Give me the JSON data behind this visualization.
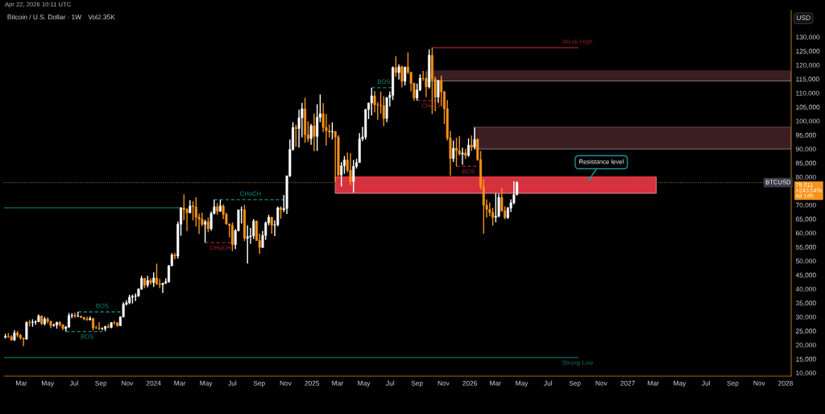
{
  "chart_data": {
    "type": "candlestick",
    "title": "Bitcoin / U.S. Dollar · 1W",
    "subtitle": "Vol2.35K",
    "ylabel": "USD",
    "x": [
      "2023-01-23",
      "2023-01-30",
      "2023-02-06",
      "2023-02-13",
      "2023-02-20",
      "2023-02-27",
      "2023-03-06",
      "2023-03-13",
      "2023-03-20",
      "2023-03-27",
      "2023-04-03",
      "2023-04-10",
      "2023-04-17",
      "2023-04-24",
      "2023-05-01",
      "2023-05-08",
      "2023-05-15",
      "2023-05-22",
      "2023-05-29",
      "2023-06-05",
      "2023-06-12",
      "2023-06-19",
      "2023-06-26",
      "2023-07-03",
      "2023-07-10",
      "2023-07-17",
      "2023-07-24",
      "2023-07-31",
      "2023-08-07",
      "2023-08-14",
      "2023-08-21",
      "2023-08-28",
      "2023-09-04",
      "2023-09-11",
      "2023-09-18",
      "2023-09-25",
      "2023-10-02",
      "2023-10-09",
      "2023-10-16",
      "2023-10-23",
      "2023-10-30",
      "2023-11-06",
      "2023-11-13",
      "2023-11-20",
      "2023-11-27",
      "2023-12-04",
      "2023-12-11",
      "2023-12-18",
      "2023-12-25",
      "2024-01-01",
      "2024-01-08",
      "2024-01-15",
      "2024-01-22",
      "2024-01-29",
      "2024-02-05",
      "2024-02-12",
      "2024-02-19",
      "2024-02-26",
      "2024-03-04",
      "2024-03-11",
      "2024-03-18",
      "2024-03-25",
      "2024-04-01",
      "2024-04-08",
      "2024-04-15",
      "2024-04-22",
      "2024-04-29",
      "2024-05-06",
      "2024-05-13",
      "2024-05-20",
      "2024-05-27",
      "2024-06-03",
      "2024-06-10",
      "2024-06-17",
      "2024-06-24",
      "2024-07-01",
      "2024-07-08",
      "2024-07-15",
      "2024-07-22",
      "2024-07-29",
      "2024-08-05",
      "2024-08-12",
      "2024-08-19",
      "2024-08-26",
      "2024-09-02",
      "2024-09-09",
      "2024-09-16",
      "2024-09-23",
      "2024-09-30",
      "2024-10-07",
      "2024-10-14",
      "2024-10-21",
      "2024-10-28",
      "2024-11-04",
      "2024-11-11",
      "2024-11-18",
      "2024-11-25",
      "2024-12-02",
      "2024-12-09",
      "2024-12-16",
      "2024-12-23",
      "2024-12-30",
      "2025-01-06",
      "2025-01-13",
      "2025-01-20",
      "2025-01-27",
      "2025-02-03",
      "2025-02-10",
      "2025-02-17",
      "2025-02-24",
      "2025-03-03",
      "2025-03-10",
      "2025-03-17",
      "2025-03-24",
      "2025-03-31",
      "2025-04-07",
      "2025-04-14",
      "2025-04-21",
      "2025-04-28",
      "2025-05-05",
      "2025-05-12",
      "2025-05-19",
      "2025-05-26",
      "2025-06-02",
      "2025-06-09",
      "2025-06-16",
      "2025-06-23",
      "2025-06-30",
      "2025-07-07",
      "2025-07-14",
      "2025-07-21",
      "2025-07-28",
      "2025-08-04",
      "2025-08-11",
      "2025-08-18",
      "2025-08-25",
      "2025-09-01",
      "2025-09-08",
      "2025-09-15",
      "2025-09-22",
      "2025-09-29",
      "2025-10-06",
      "2025-10-13",
      "2025-10-20",
      "2025-10-27",
      "2025-11-03",
      "2025-11-10",
      "2025-11-17",
      "2025-11-24",
      "2025-12-01",
      "2025-12-08",
      "2025-12-15",
      "2025-12-22",
      "2025-12-29",
      "2026-01-05",
      "2026-01-12",
      "2026-01-19",
      "2026-01-26",
      "2026-02-02",
      "2026-02-09",
      "2026-02-16",
      "2026-02-23",
      "2026-03-02",
      "2026-03-09",
      "2026-03-16",
      "2026-03-23",
      "2026-03-30",
      "2026-04-06",
      "2026-04-13",
      "2026-04-20"
    ],
    "ohlc": [
      [
        22700,
        23950,
        22300,
        23030
      ],
      [
        23030,
        24250,
        22550,
        22930
      ],
      [
        22930,
        23430,
        21440,
        21790
      ],
      [
        21790,
        25250,
        21350,
        24300
      ],
      [
        24300,
        25020,
        22760,
        23500
      ],
      [
        23500,
        23880,
        21960,
        22400
      ],
      [
        22400,
        22600,
        19570,
        22100
      ],
      [
        22100,
        28400,
        21900,
        28000
      ],
      [
        28000,
        28900,
        26650,
        27980
      ],
      [
        27980,
        29180,
        26500,
        28170
      ],
      [
        28170,
        28780,
        27220,
        28330
      ],
      [
        28330,
        30950,
        28180,
        30320
      ],
      [
        30320,
        30480,
        27150,
        27590
      ],
      [
        27590,
        30040,
        26950,
        29250
      ],
      [
        29250,
        29850,
        27680,
        28440
      ],
      [
        28440,
        28640,
        26000,
        26920
      ],
      [
        26920,
        27650,
        26550,
        27100
      ],
      [
        27100,
        28270,
        25850,
        28080
      ],
      [
        28080,
        28450,
        26520,
        27250
      ],
      [
        27250,
        27350,
        25350,
        25900
      ],
      [
        25900,
        26800,
        24800,
        26340
      ],
      [
        26340,
        31400,
        26250,
        30480
      ],
      [
        30480,
        31280,
        29550,
        30600
      ],
      [
        30600,
        31500,
        29720,
        30280
      ],
      [
        30280,
        31810,
        29950,
        30290
      ],
      [
        30290,
        30350,
        29550,
        29860
      ],
      [
        29860,
        29990,
        28850,
        29270
      ],
      [
        29270,
        30050,
        28650,
        29040
      ],
      [
        29040,
        30240,
        28700,
        29420
      ],
      [
        29420,
        29690,
        25150,
        26090
      ],
      [
        26090,
        26800,
        25800,
        26010
      ],
      [
        26010,
        28150,
        25350,
        25820
      ],
      [
        25820,
        26250,
        25350,
        25830
      ],
      [
        25830,
        26880,
        24900,
        26530
      ],
      [
        26530,
        27480,
        26170,
        26250
      ],
      [
        26250,
        28050,
        26000,
        27990
      ],
      [
        27990,
        28580,
        27200,
        27950
      ],
      [
        27950,
        28000,
        26550,
        26870
      ],
      [
        26870,
        30250,
        26820,
        29980
      ],
      [
        29980,
        35280,
        29850,
        34530
      ],
      [
        34530,
        35950,
        34100,
        35050
      ],
      [
        35050,
        37950,
        34550,
        37070
      ],
      [
        37070,
        37980,
        34800,
        37370
      ],
      [
        37370,
        38450,
        35700,
        37460
      ],
      [
        37460,
        40250,
        37200,
        39970
      ],
      [
        39970,
        44700,
        39700,
        43790
      ],
      [
        43790,
        43830,
        40250,
        41380
      ],
      [
        41380,
        44700,
        40550,
        43020
      ],
      [
        43020,
        43800,
        41500,
        42280
      ],
      [
        42280,
        45900,
        40750,
        43920
      ],
      [
        43920,
        49050,
        41500,
        41740
      ],
      [
        41740,
        43580,
        40300,
        41570
      ],
      [
        41570,
        42250,
        38550,
        42040
      ],
      [
        42040,
        43850,
        41800,
        42580
      ],
      [
        42580,
        48550,
        42250,
        48300
      ],
      [
        48300,
        52800,
        48100,
        52130
      ],
      [
        52130,
        52950,
        50550,
        51730
      ],
      [
        51730,
        64000,
        50900,
        63150
      ],
      [
        63150,
        69200,
        59000,
        68950
      ],
      [
        68950,
        73800,
        64550,
        68370
      ],
      [
        68370,
        68950,
        60750,
        67230
      ],
      [
        67230,
        71750,
        66950,
        69650
      ],
      [
        69650,
        71300,
        64500,
        69350
      ],
      [
        69350,
        72800,
        62300,
        65650
      ],
      [
        65650,
        66900,
        59650,
        64950
      ],
      [
        64950,
        67250,
        62450,
        63100
      ],
      [
        63100,
        64750,
        56550,
        64010
      ],
      [
        64010,
        65500,
        60250,
        61520
      ],
      [
        61520,
        67700,
        60800,
        66950
      ],
      [
        66950,
        71950,
        66650,
        69350
      ],
      [
        69350,
        70600,
        66500,
        67750
      ],
      [
        67750,
        71950,
        67600,
        69650
      ],
      [
        69650,
        70200,
        64950,
        66650
      ],
      [
        66650,
        67250,
        63000,
        63220
      ],
      [
        63220,
        63350,
        58450,
        62700
      ],
      [
        62700,
        63800,
        53550,
        55850
      ],
      [
        55850,
        61400,
        54250,
        60800
      ],
      [
        60800,
        68400,
        60600,
        68200
      ],
      [
        68200,
        69400,
        63400,
        68250
      ],
      [
        68250,
        70000,
        57100,
        58100
      ],
      [
        58100,
        62700,
        49050,
        58700
      ],
      [
        58700,
        61800,
        56100,
        58950
      ],
      [
        58950,
        65000,
        57850,
        64200
      ],
      [
        64200,
        64500,
        57200,
        57300
      ],
      [
        57300,
        59800,
        52550,
        54850
      ],
      [
        54850,
        60700,
        54600,
        59150
      ],
      [
        59150,
        64100,
        57550,
        63600
      ],
      [
        63600,
        66500,
        62700,
        65600
      ],
      [
        65600,
        65700,
        59800,
        62800
      ],
      [
        62800,
        64500,
        58900,
        62950
      ],
      [
        62950,
        69400,
        62400,
        69000
      ],
      [
        69000,
        69500,
        65050,
        68300
      ],
      [
        68300,
        73600,
        67500,
        68750
      ],
      [
        68750,
        80500,
        66800,
        80400
      ],
      [
        80400,
        93400,
        80000,
        89850
      ],
      [
        89850,
        99600,
        89400,
        97700
      ],
      [
        97700,
        98700,
        90800,
        97300
      ],
      [
        97300,
        104000,
        90500,
        101150
      ],
      [
        101150,
        106500,
        94200,
        104400
      ],
      [
        104400,
        108300,
        92200,
        95100
      ],
      [
        95100,
        99900,
        92500,
        93700
      ],
      [
        93700,
        99000,
        91500,
        98300
      ],
      [
        98300,
        102700,
        89200,
        94500
      ],
      [
        94500,
        106000,
        89300,
        101300
      ],
      [
        101300,
        109500,
        99600,
        102600
      ],
      [
        102600,
        106400,
        96000,
        97700
      ],
      [
        97700,
        102500,
        91200,
        96500
      ],
      [
        96500,
        98800,
        94100,
        96100
      ],
      [
        96100,
        99500,
        93400,
        96250
      ],
      [
        96250,
        96500,
        78200,
        94270
      ],
      [
        94270,
        95000,
        80100,
        80700
      ],
      [
        80700,
        85300,
        76600,
        84000
      ],
      [
        84000,
        87500,
        81150,
        86100
      ],
      [
        86100,
        88800,
        81600,
        82400
      ],
      [
        82400,
        88500,
        77150,
        78400
      ],
      [
        78400,
        86100,
        74450,
        83800
      ],
      [
        83800,
        86500,
        83000,
        85150
      ],
      [
        85150,
        95700,
        85100,
        93700
      ],
      [
        93700,
        97900,
        92800,
        94300
      ],
      [
        94300,
        104300,
        93400,
        104100
      ],
      [
        104100,
        106600,
        100700,
        106400
      ],
      [
        106400,
        111900,
        102000,
        109000
      ],
      [
        109000,
        110700,
        103100,
        105800
      ],
      [
        105800,
        106800,
        100400,
        105700
      ],
      [
        105700,
        110550,
        102700,
        105500
      ],
      [
        105500,
        108900,
        98200,
        100900
      ],
      [
        100900,
        108500,
        99600,
        108400
      ],
      [
        108400,
        110600,
        105200,
        109200
      ],
      [
        109200,
        119500,
        107500,
        119100
      ],
      [
        119100,
        123200,
        115800,
        117300
      ],
      [
        117300,
        120200,
        114800,
        119400
      ],
      [
        119400,
        119800,
        112000,
        114200
      ],
      [
        114200,
        119400,
        112700,
        119300
      ],
      [
        119300,
        124450,
        116800,
        117400
      ],
      [
        117400,
        117600,
        110600,
        113500
      ],
      [
        113500,
        113700,
        107300,
        108200
      ],
      [
        108200,
        113400,
        107300,
        111100
      ],
      [
        111100,
        116700,
        110700,
        115300
      ],
      [
        115300,
        117900,
        114400,
        115200
      ],
      [
        115200,
        115400,
        108600,
        112200
      ],
      [
        112200,
        125600,
        111600,
        123500
      ],
      [
        123500,
        126200,
        102500,
        114900
      ],
      [
        114900,
        115900,
        103500,
        108500
      ],
      [
        108500,
        114600,
        106500,
        114500
      ],
      [
        114500,
        116200,
        105400,
        110400
      ],
      [
        110400,
        110800,
        98900,
        104400
      ],
      [
        104400,
        107500,
        93000,
        93900
      ],
      [
        93900,
        96500,
        80400,
        86600
      ],
      [
        86600,
        93000,
        85300,
        90300
      ],
      [
        90300,
        94000,
        83800,
        89400
      ],
      [
        89400,
        94600,
        87600,
        88200
      ],
      [
        88200,
        90400,
        84400,
        88600
      ],
      [
        88600,
        90000,
        86500,
        87700
      ],
      [
        87700,
        93800,
        87200,
        91400
      ],
      [
        91400,
        94800,
        89300,
        90700
      ],
      [
        90700,
        97700,
        89900,
        93400
      ],
      [
        93400,
        93800,
        85800,
        86200
      ],
      [
        86200,
        89300,
        75500,
        76600
      ],
      [
        76600,
        79200,
        59800,
        69900
      ],
      [
        69900,
        72000,
        65500,
        68400
      ],
      [
        68400,
        70900,
        66000,
        67300
      ],
      [
        67300,
        69000,
        62600,
        65600
      ],
      [
        65600,
        74200,
        63800,
        66000
      ],
      [
        66000,
        74000,
        65600,
        72700
      ],
      [
        72700,
        76100,
        67600,
        67900
      ],
      [
        67900,
        69500,
        64900,
        65500
      ],
      [
        65500,
        69300,
        65000,
        68900
      ],
      [
        68900,
        72000,
        67500,
        70800
      ],
      [
        70800,
        78500,
        70200,
        73700
      ],
      [
        73700,
        78500,
        73400,
        78011
      ]
    ],
    "colors": [
      "#ffffff",
      "#f7931a",
      "#f7931a",
      "#ffffff",
      "#f7931a",
      "#f7931a",
      "#f7931a",
      "#ffffff",
      "#f7931a",
      "#ffffff",
      "#ffffff",
      "#ffffff",
      "#f7931a",
      "#ffffff",
      "#f7931a",
      "#f7931a",
      "#ffffff",
      "#ffffff",
      "#f7931a",
      "#f7931a",
      "#ffffff",
      "#ffffff",
      "#ffffff",
      "#f7931a",
      "#ffffff",
      "#f7931a",
      "#f7931a",
      "#f7931a",
      "#ffffff",
      "#f7931a",
      "#f7931a",
      "#f7931a",
      "#ffffff",
      "#ffffff",
      "#f7931a",
      "#ffffff",
      "#f7931a",
      "#f7931a",
      "#ffffff",
      "#ffffff",
      "#ffffff",
      "#ffffff",
      "#ffffff",
      "#ffffff",
      "#ffffff",
      "#ffffff",
      "#f7931a",
      "#ffffff",
      "#f7931a",
      "#ffffff",
      "#f7931a",
      "#f7931a",
      "#ffffff",
      "#ffffff",
      "#ffffff",
      "#ffffff",
      "#f7931a",
      "#ffffff",
      "#ffffff",
      "#f7931a",
      "#f7931a",
      "#ffffff",
      "#f7931a",
      "#f7931a",
      "#f7931a",
      "#f7931a",
      "#ffffff",
      "#f7931a",
      "#ffffff",
      "#ffffff",
      "#f7931a",
      "#ffffff",
      "#f7931a",
      "#f7931a",
      "#f7931a",
      "#f7931a",
      "#ffffff",
      "#ffffff",
      "#ffffff",
      "#f7931a",
      "#ffffff",
      "#ffffff",
      "#ffffff",
      "#f7931a",
      "#f7931a",
      "#ffffff",
      "#ffffff",
      "#ffffff",
      "#f7931a",
      "#ffffff",
      "#ffffff",
      "#f7931a",
      "#ffffff",
      "#ffffff",
      "#ffffff",
      "#ffffff",
      "#f7931a",
      "#ffffff",
      "#ffffff",
      "#f7931a",
      "#f7931a",
      "#ffffff",
      "#f7931a",
      "#ffffff",
      "#ffffff",
      "#f7931a",
      "#f7931a",
      "#f7931a",
      "#ffffff",
      "#f7931a",
      "#f7931a",
      "#ffffff",
      "#ffffff",
      "#f7931a",
      "#f7931a",
      "#ffffff",
      "#ffffff",
      "#ffffff",
      "#ffffff",
      "#ffffff",
      "#ffffff",
      "#ffffff",
      "#f7931a",
      "#f7931a",
      "#f7931a",
      "#f7931a",
      "#ffffff",
      "#ffffff",
      "#ffffff",
      "#f7931a",
      "#ffffff",
      "#f7931a",
      "#ffffff",
      "#f7931a",
      "#f7931a",
      "#f7931a",
      "#ffffff",
      "#ffffff",
      "#f7931a",
      "#f7931a",
      "#ffffff",
      "#f7931a",
      "#f7931a",
      "#ffffff",
      "#f7931a",
      "#f7931a",
      "#f7931a",
      "#f7931a",
      "#ffffff",
      "#f7931a",
      "#f7931a",
      "#ffffff",
      "#f7931a",
      "#ffffff",
      "#f7931a",
      "#ffffff",
      "#f7931a",
      "#f7931a",
      "#f7931a",
      "#f7931a",
      "#f7931a",
      "#f7931a",
      "#ffffff",
      "#ffffff",
      "#f7931a",
      "#f7931a",
      "#ffffff",
      "#ffffff",
      "#ffffff",
      "#ffffff"
    ],
    "series": [
      {
        "type": "line",
        "x": [
          "2025-02-24",
          "2027-03-08"
        ],
        "values": [
          80000,
          80000
        ],
        "lower": [
          74200,
          74200
        ],
        "upper": [
          80000,
          80000
        ],
        "color": "#d8303f"
      },
      {
        "type": "line",
        "x": [
          "2025-09-22",
          "2028-01-14"
        ],
        "values": [
          117800,
          117800
        ],
        "lower": [
          114300,
          114300
        ],
        "upper": [
          117800,
          117800
        ],
        "color": "#3b1e21"
      },
      {
        "type": "line",
        "x": [
          "2026-01-12",
          "2028-01-14"
        ],
        "values": [
          97800,
          97800
        ],
        "lower": [
          90000,
          90000
        ],
        "upper": [
          97800,
          97800
        ],
        "color": "#3b1e21"
      },
      {
        "type": "line",
        "x": [
          "2025-10-06",
          "2026-09-07"
        ],
        "values": [
          126200,
          126200
        ],
        "color": "#8b1d24"
      },
      {
        "type": "line",
        "x": [
          "2023-01-20",
          "2024-03-04"
        ],
        "values": [
          69000,
          69000
        ],
        "color": "#0e5d53"
      },
      {
        "type": "line",
        "x": [
          "2023-01-20",
          "2026-09-07"
        ],
        "values": [
          15500,
          15500
        ],
        "color": "#0e6e61"
      },
      {
        "type": "line",
        "x": [
          "2023-07-10",
          "2023-10-23"
        ],
        "values": [
          31800,
          31800
        ],
        "color": "#0d8a78",
        "line_style": "dashed"
      },
      {
        "type": "line",
        "x": [
          "2023-06-12",
          "2023-09-11"
        ],
        "values": [
          24800,
          24800
        ],
        "color": "#0d8a78",
        "line_style": "dashed"
      },
      {
        "type": "line",
        "x": [
          "2024-05-20",
          "2024-10-28"
        ],
        "values": [
          71900,
          71900
        ],
        "color": "#0d8a78",
        "line_style": "dashed"
      },
      {
        "type": "line",
        "x": [
          "2024-04-29",
          "2024-07-01"
        ],
        "values": [
          56500,
          56500
        ],
        "color": "#a1222c",
        "line_style": "dashed"
      },
      {
        "type": "line",
        "x": [
          "2025-05-19",
          "2025-07-07"
        ],
        "values": [
          111900,
          111900
        ],
        "color": "#0d8a78",
        "line_style": "dashed"
      },
      {
        "type": "line",
        "x": [
          "2025-09-01",
          "2025-10-27"
        ],
        "values": [
          107300,
          107300
        ],
        "color": "#a1222c",
        "line_style": "dashed"
      },
      {
        "type": "line",
        "x": [
          "2025-12-01",
          "2026-01-19"
        ],
        "values": [
          83800,
          83800
        ],
        "color": "#a1222c",
        "line_style": "dashed"
      }
    ],
    "xlim": [
      "2023-01-20",
      "2028-01-14"
    ],
    "ylim": [
      8850,
      139500
    ],
    "xticks": [
      {
        "value": "2023-03-01",
        "label": "Mar"
      },
      {
        "value": "2023-05-01",
        "label": "May"
      },
      {
        "value": "2023-07-01",
        "label": "Jul"
      },
      {
        "value": "2023-09-01",
        "label": "Sep"
      },
      {
        "value": "2023-11-01",
        "label": "Nov"
      },
      {
        "value": "2024-01-01",
        "label": "2024"
      },
      {
        "value": "2024-03-01",
        "label": "Mar"
      },
      {
        "value": "2024-05-01",
        "label": "May"
      },
      {
        "value": "2024-07-01",
        "label": "Jul"
      },
      {
        "value": "2024-09-01",
        "label": "Sep"
      },
      {
        "value": "2024-11-01",
        "label": "Nov"
      },
      {
        "value": "2025-01-01",
        "label": "2025"
      },
      {
        "value": "2025-03-01",
        "label": "Mar"
      },
      {
        "value": "2025-05-01",
        "label": "May"
      },
      {
        "value": "2025-07-01",
        "label": "Jul"
      },
      {
        "value": "2025-09-01",
        "label": "Sep"
      },
      {
        "value": "2025-11-01",
        "label": "Nov"
      },
      {
        "value": "2026-01-01",
        "label": "2026"
      },
      {
        "value": "2026-03-01",
        "label": "Mar"
      },
      {
        "value": "2026-05-01",
        "label": "May"
      },
      {
        "value": "2026-07-01",
        "label": "Jul"
      },
      {
        "value": "2026-09-01",
        "label": "Sep"
      },
      {
        "value": "2026-11-01",
        "label": "Nov"
      },
      {
        "value": "2027-01-01",
        "label": "2027"
      },
      {
        "value": "2027-03-01",
        "label": "Mar"
      },
      {
        "value": "2027-05-01",
        "label": "May"
      },
      {
        "value": "2027-07-01",
        "label": "Jul"
      },
      {
        "value": "2027-09-01",
        "label": "Sep"
      },
      {
        "value": "2027-11-01",
        "label": "Nov"
      },
      {
        "value": "2028-01-01",
        "label": "2028"
      }
    ],
    "yticks": [
      {
        "value": 10000,
        "label": "10,000"
      },
      {
        "value": 15000,
        "label": "15,000"
      },
      {
        "value": 20000,
        "label": "20,000"
      },
      {
        "value": 25000,
        "label": "25,000"
      },
      {
        "value": 30000,
        "label": "30,000"
      },
      {
        "value": 35000,
        "label": "35,000"
      },
      {
        "value": 40000,
        "label": "40,000"
      },
      {
        "value": 45000,
        "label": "45,000"
      },
      {
        "value": 50000,
        "label": "50,000"
      },
      {
        "value": 55000,
        "label": "55,000"
      },
      {
        "value": 60000,
        "label": "60,000"
      },
      {
        "value": 65000,
        "label": "65,000"
      },
      {
        "value": 70000,
        "label": "70,000"
      },
      {
        "value": 80000,
        "label": "80,000"
      },
      {
        "value": 85000,
        "label": "85,000"
      },
      {
        "value": 90000,
        "label": "90,000"
      },
      {
        "value": 95000,
        "label": "95,000"
      },
      {
        "value": 100000,
        "label": "100,000"
      },
      {
        "value": 105000,
        "label": "105,000"
      },
      {
        "value": 110000,
        "label": "110,000"
      },
      {
        "value": 115000,
        "label": "115,000"
      },
      {
        "value": 120000,
        "label": "120,000"
      },
      {
        "value": 125000,
        "label": "125,000"
      },
      {
        "value": 130000,
        "label": "130,000"
      }
    ],
    "ref_lines": [
      {
        "axis": "y",
        "value": 78011,
        "label": "BTCUSD",
        "color": "#8a5a1c",
        "line_style": "dotted"
      }
    ],
    "annotations": [
      "Apr 22, 2026 10:11 UTC",
      "78,011\n+243.54%\n4d 14h",
      {
        "text": "BOS",
        "x": "2023-09-04",
        "y": 31800
      },
      {
        "text": "BOS",
        "x": "2023-07-31",
        "y": 24800
      },
      {
        "text": "CHoCH",
        "x": "2024-08-12",
        "y": 71900
      },
      {
        "text": "CHoCH",
        "x": "2024-06-03",
        "y": 56500
      },
      {
        "text": "BOS",
        "x": "2025-06-16",
        "y": 111900
      },
      {
        "text": "CHoCH",
        "x": "2025-10-06",
        "y": 107300
      },
      {
        "text": "BOS",
        "x": "2025-12-29",
        "y": 83800
      },
      {
        "text": "Weak High",
        "x": "2026-09-07",
        "y": 126200
      },
      {
        "text": "Strong Low",
        "x": "2026-09-07",
        "y": 15500
      },
      {
        "text": "Resistance level",
        "x": "2026-10-01",
        "y": 78500
      }
    ]
  }
}
